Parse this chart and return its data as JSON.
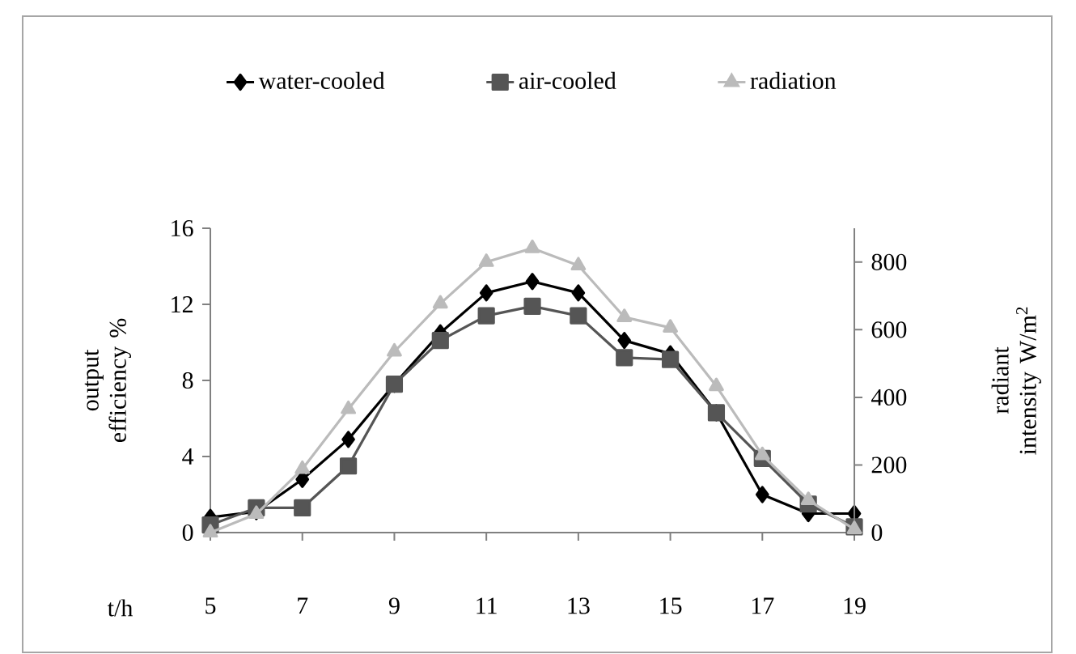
{
  "chart_data": {
    "type": "line",
    "xlabel": "t/h",
    "ylabel": "output efficiency %",
    "y2label": "radiant intensity W/m$^{2}$",
    "x": [
      5,
      6,
      7,
      8,
      9,
      10,
      11,
      12,
      13,
      14,
      15,
      16,
      17,
      18,
      19
    ],
    "xlim": [
      5,
      19
    ],
    "xticks": [
      5,
      7,
      9,
      11,
      13,
      15,
      17,
      19
    ],
    "ylim": [
      0,
      16
    ],
    "yticks": [
      0,
      4,
      8,
      12,
      16
    ],
    "y2lim": [
      0,
      900
    ],
    "y2ticks": [
      0,
      200,
      400,
      600,
      800
    ],
    "legend": "top",
    "grid": false,
    "line_style": "solid",
    "series": [
      {
        "name": "water-cooled",
        "color": "#000000",
        "marker": "diamond",
        "values": [
          0.8,
          1.1,
          2.8,
          4.9,
          7.8,
          10.5,
          12.6,
          13.2,
          12.6,
          10.1,
          9.4,
          6.3,
          2.0,
          1.0,
          1.0
        ]
      },
      {
        "name": "air-cooled",
        "color": "#555555",
        "marker": "square",
        "values": [
          0.4,
          1.3,
          1.3,
          3.5,
          7.8,
          10.1,
          11.4,
          11.9,
          11.4,
          9.2,
          9.1,
          6.3,
          3.9,
          1.5,
          0.3
        ]
      },
      {
        "name": "radiation",
        "color": "#bbbbbb",
        "marker": "triangle",
        "axis": "y2",
        "values": [
          0,
          55,
          188,
          365,
          535,
          677,
          800,
          841,
          790,
          637,
          606,
          433,
          229,
          96,
          10
        ]
      }
    ]
  }
}
